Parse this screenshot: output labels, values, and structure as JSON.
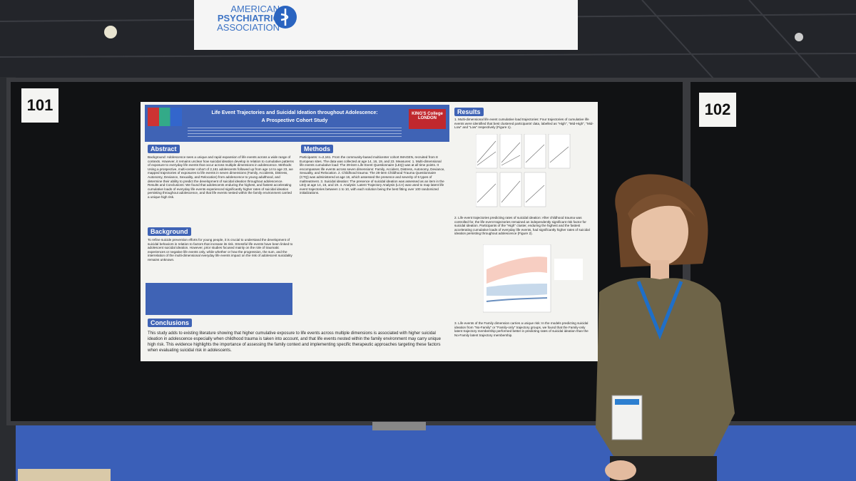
{
  "banner": {
    "line1": "AMERICAN",
    "line2": "PSYCHIATRIC",
    "line3": "ASSOCIATION"
  },
  "boards": {
    "left": "101",
    "right": "102"
  },
  "poster": {
    "title": "Life Event Trajectories and Suicidal Ideation throughout Adolescence:",
    "subtitle": "A Prospective Cohort Study",
    "logo": "KING'S College LONDON",
    "abstract": {
      "heading": "Abstract",
      "text": "Background: Adolescence sees a unique and rapid expansion of life events across a wide range of contexts. However, it remains unclear how suicidal ideation develop in relation to cumulative patterns of exposure to everyday life events that occur across multiple dimensions in adolescence. Methods: Using a prospective, multi-center cohort of 2,161 adolescents followed up from age 14 to age 23, we mapped trajectories of exposures to life events in seven dimensions (Family, Accidents, Distress, Autonomy, Deviance, Sexuality, and Relocation) from adolescence to young adulthood, and determine their ability to predict the development of suicidal ideation throughout adolescence. Results and Conclusions: We found that adolescents enduring the highest, and fastest accelerating cumulative loads of everyday life events experienced significantly higher rates of suicidal ideation persisting throughout adolescence, and that life events nested within the family environment carried a unique high risk."
    },
    "background": {
      "heading": "Background",
      "text": "To refine suicide prevention efforts for young people, it is crucial to understand the development of suicidal behaviors in relation to factors that increase its risk. Stressful life events have been linked to adolescent suicidal ideation. However, prior studies focused mainly on the role of traumatic experiences or negative life events only, while whether or how the progression, the sum, and the interrelation of the multi-dimensional everyday life events impact on the risk of adolescent suicidality remains unknown."
    },
    "methods": {
      "heading": "Methods",
      "text": "Participants: n=2,161. From the community-based multicenter cohort IMAGEN, recruited from 8 European sites. The data was collected at age 14, 16, 19, and 23. Measures: 1. Multi-dimensional life events cumulative load: The 39-item Life Event Questionnaire (LEQ) was at all time points. It encompasses life events across seven dimensions: Family, Accident, Distress, Autonomy, Deviance, Sexuality, and Relocation. 2. Childhood trauma: The 28-item Childhood Trauma Questionnaire (CTQ) was administered at age 16, which assessed the presence and severity of 5 types of maltreatment. 3. Suicidal ideation: The presence of suicidal ideation was assessed as an item in the LEQ at age 14, 16, and 19. 4. Analysis: Latent Trajectory Analysis (LCA) was used to map latent life event trajectories between 1 to 10, with each solution being the best fitting over 100 randomized initializations."
    },
    "results": {
      "heading": "Results",
      "text1": "1. Multi-dimensional life event cumulative load trajectories: Four trajectories of cumulative life events were identified that best clustered participants' data, labelled as \"High\", \"Mid-High\", \"Mid-Low\" and \"Low\" respectively (Figure 1).",
      "text2": "2. Life event trajectories predicting rates of suicidal ideation: After childhood trauma was controlled for, the life event trajectories remained an independently significant risk factor for suicidal ideation. Participants of the \"High\" cluster, enduring the highest and the fastest accelerating cumulative loads of everyday life events, had significantly higher rates of suicidal ideation persisting throughout adolescence (Figure 2).",
      "text3": "3. Life events of the Family dimension carries a unique risk: In the models predicting suicidal ideation from \"No-Family\" or \"Family-only\" trajectory groups, we found that the Family-only latent trajectory membership performed better in predicting rates of suicidal ideation than the No-Family latent trajectory membership."
    },
    "conclusions": {
      "heading": "Conclusions",
      "text": "This study adds to existing literature showing that higher cumulative exposure to life events across multiple dimensions is associated with higher suicidal ideation in adolescence especially when childhood trauma is taken into account, and that life events nested within the family environment may carry unique high risk. This evidence highlights the importance of assessing the family context and implementing specific therapeutic approaches targeting these factors when evaluating suicidal risk in adolescents."
    }
  }
}
